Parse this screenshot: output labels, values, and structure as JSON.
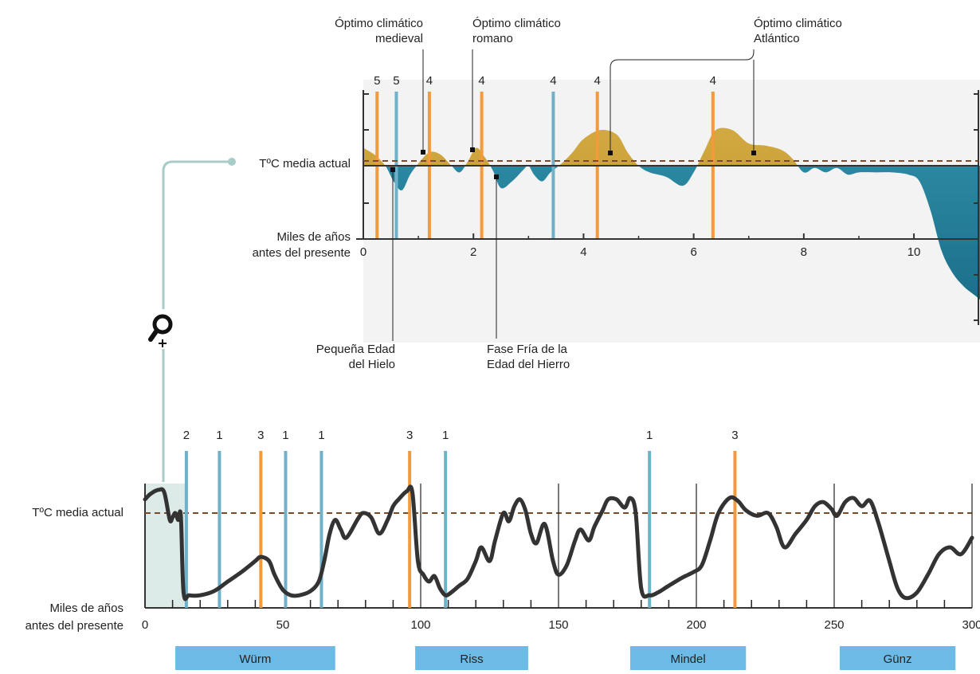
{
  "colors": {
    "warm": "#c9a43a",
    "cold": "#2f8fa7",
    "orange": "#f39a3a",
    "blue": "#6fb1c8",
    "curve": "#333333",
    "dashed": "#7a4a2a",
    "connector": "#a8cdc8",
    "highlight": "#dcebe8",
    "glaciation_bar": "#6cbbe6"
  },
  "chart_data": [
    {
      "type": "area",
      "xlabel": [
        "Miles de años",
        "antes del presente"
      ],
      "reference_label": "TºC media actual",
      "x_ticks": [
        "0",
        "2",
        "4",
        "6",
        "8",
        "10"
      ],
      "xlim": [
        0,
        11.2
      ],
      "series": [
        {
          "x": [
            0,
            0.2,
            0.4,
            0.55,
            0.7,
            0.85,
            1.0,
            1.2,
            1.4,
            1.6,
            1.75,
            1.9,
            2.05,
            2.2,
            2.35,
            2.5,
            2.7,
            2.9,
            3.0,
            3.1,
            3.25,
            3.4,
            3.6,
            3.8,
            4.0,
            4.3,
            4.6,
            4.8,
            5.0,
            5.2,
            5.5,
            5.8,
            6.0,
            6.2,
            6.4,
            6.7,
            7.0,
            7.3,
            7.6,
            7.8,
            8.0,
            8.2,
            8.4,
            8.6,
            8.8,
            9.0,
            9.3,
            9.6,
            9.9,
            10.1,
            10.3,
            10.5,
            10.7,
            10.9,
            11.1,
            11.2
          ],
          "y": [
            0.8,
            0.5,
            0.0,
            -0.7,
            -1.1,
            -0.4,
            0.1,
            0.6,
            0.5,
            0.0,
            -0.3,
            0.2,
            0.8,
            0.4,
            -0.2,
            -1.0,
            -0.7,
            -0.2,
            0.0,
            -0.4,
            -0.7,
            -0.3,
            0.1,
            0.6,
            1.2,
            1.6,
            1.4,
            0.6,
            0.0,
            -0.3,
            -0.5,
            -0.9,
            -0.3,
            0.7,
            1.6,
            1.6,
            1.0,
            0.9,
            0.7,
            0.3,
            -0.3,
            -0.1,
            -0.3,
            -0.1,
            -0.4,
            -0.3,
            -0.3,
            -0.3,
            -0.4,
            -0.7,
            -2.0,
            -3.8,
            -4.8,
            -5.4,
            -5.8,
            -6.0
          ]
        }
      ],
      "events": [
        {
          "x": 0.25,
          "label": "5",
          "color": "orange"
        },
        {
          "x": 0.6,
          "label": "5",
          "color": "blue"
        },
        {
          "x": 1.2,
          "label": "4",
          "color": "orange"
        },
        {
          "x": 2.15,
          "label": "4",
          "color": "orange"
        },
        {
          "x": 3.45,
          "label": "4",
          "color": "blue"
        },
        {
          "x": 4.25,
          "label": "4",
          "color": "orange"
        },
        {
          "x": 6.35,
          "label": "4",
          "color": "orange"
        }
      ]
    },
    {
      "type": "line",
      "xlabel": [
        "Miles de años",
        "antes del presente"
      ],
      "reference_label": "TºC media actual",
      "x_ticks": [
        "0",
        "50",
        "100",
        "150",
        "200",
        "250",
        "300"
      ],
      "xlim": [
        0,
        300
      ],
      "series": [
        {
          "x": [
            0,
            2,
            5,
            7,
            9,
            10,
            11,
            12,
            13,
            14,
            16,
            20,
            25,
            30,
            35,
            40,
            42,
            45,
            47,
            50,
            53,
            56,
            60,
            63,
            65,
            67,
            69,
            71,
            73,
            77,
            79,
            82,
            85,
            88,
            90,
            92,
            95,
            97,
            99,
            101,
            103,
            105,
            107,
            109,
            111,
            114,
            117,
            120,
            122,
            125,
            127,
            130,
            132,
            134,
            136,
            138,
            140,
            142,
            145,
            148,
            150,
            153,
            156,
            158,
            161,
            163,
            166,
            168,
            171,
            174,
            176,
            178,
            180,
            183,
            186,
            190,
            195,
            199,
            202,
            205,
            208,
            212,
            215,
            218,
            222,
            226,
            229,
            232,
            236,
            240,
            243,
            246,
            249,
            251,
            254,
            257,
            260,
            263,
            266,
            270,
            273,
            276,
            280,
            284,
            288,
            292,
            296,
            300
          ],
          "y": [
            1.0,
            1.4,
            1.7,
            1.5,
            -0.5,
            -0.3,
            0.0,
            -0.5,
            -0.2,
            -5.8,
            -6.0,
            -6.0,
            -5.7,
            -5.0,
            -4.3,
            -3.5,
            -3.2,
            -3.5,
            -4.5,
            -5.6,
            -6.0,
            -6.0,
            -5.7,
            -5.0,
            -3.5,
            -1.5,
            -0.5,
            -1.2,
            -1.8,
            -0.5,
            0.0,
            -0.3,
            -1.5,
            -0.5,
            0.5,
            1.0,
            1.6,
            1.5,
            -3.5,
            -4.5,
            -5.0,
            -4.6,
            -5.5,
            -6.0,
            -5.8,
            -5.3,
            -4.8,
            -3.5,
            -2.5,
            -3.5,
            -2.0,
            0.0,
            -0.6,
            0.5,
            1.0,
            0.2,
            -1.5,
            -2.2,
            -0.8,
            -3.5,
            -4.5,
            -3.8,
            -2.0,
            -1.2,
            -2.0,
            -1.0,
            0.2,
            1.0,
            1.0,
            0.4,
            1.1,
            0.0,
            -5.5,
            -6.0,
            -5.8,
            -5.3,
            -4.7,
            -4.3,
            -3.8,
            -2.0,
            0.0,
            1.1,
            0.9,
            0.2,
            -0.2,
            0.0,
            -1.0,
            -2.5,
            -1.5,
            -0.5,
            0.5,
            0.8,
            0.3,
            -0.2,
            0.8,
            1.1,
            0.5,
            0.9,
            -0.7,
            -3.5,
            -5.5,
            -6.2,
            -5.8,
            -4.5,
            -3.0,
            -2.5,
            -3.0,
            -1.8
          ]
        }
      ],
      "events": [
        {
          "x": 15,
          "label": "2",
          "color": "blue"
        },
        {
          "x": 27,
          "label": "1",
          "color": "blue"
        },
        {
          "x": 42,
          "label": "3",
          "color": "orange"
        },
        {
          "x": 51,
          "label": "1",
          "color": "blue"
        },
        {
          "x": 64,
          "label": "1",
          "color": "blue"
        },
        {
          "x": 96,
          "label": "3",
          "color": "orange"
        },
        {
          "x": 109,
          "label": "1",
          "color": "blue"
        },
        {
          "x": 183,
          "label": "1",
          "color": "blue"
        },
        {
          "x": 214,
          "label": "3",
          "color": "orange"
        }
      ],
      "glaciations": [
        {
          "name": "Würm",
          "x0": 11,
          "x1": 69
        },
        {
          "name": "Riss",
          "x0": 98,
          "x1": 139
        },
        {
          "name": "Mindel",
          "x0": 176,
          "x1": 218
        },
        {
          "name": "Günz",
          "x0": 252,
          "x1": 294
        }
      ]
    }
  ],
  "annotations": {
    "medieval": [
      "Óptimo climático",
      "medieval"
    ],
    "romano": [
      "Óptimo climático",
      "romano"
    ],
    "atlantico": [
      "Óptimo climático",
      "Atlántico"
    ],
    "pequena": [
      "Pequeña Edad",
      "del Hielo"
    ],
    "fria": [
      "Fase Fría de la",
      "Edad del Hierro"
    ]
  },
  "zoom_icon": "magnify-plus-icon"
}
